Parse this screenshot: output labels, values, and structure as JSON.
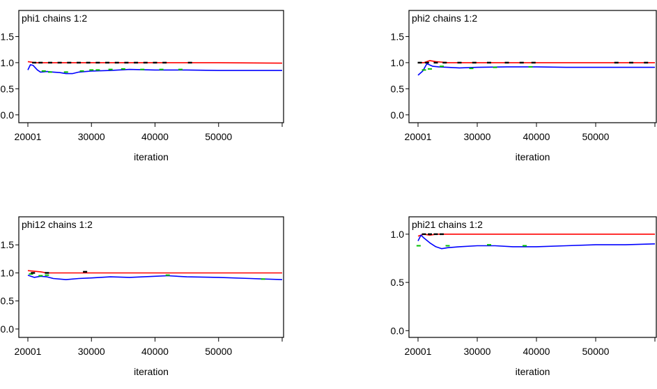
{
  "chart_data": [
    {
      "type": "line",
      "title": "phi1 chains 1:2",
      "xlabel": "iteration",
      "ylabel": "",
      "xlim": [
        20001,
        60000
      ],
      "ylim": [
        -0.15,
        2.0
      ],
      "xticks": [
        20001,
        30000,
        40000,
        50000,
        60000
      ],
      "xtick_labels": [
        "20001",
        "30000",
        "40000",
        "50000",
        ""
      ],
      "yticks": [
        0.0,
        0.5,
        1.0,
        1.5
      ],
      "ytick_labels": [
        "0.0",
        "0.5",
        "1.0",
        "1.5"
      ],
      "grid": false,
      "series": [
        {
          "color": "#ff0000",
          "x": [
            20001,
            20500,
            21000,
            22000,
            25000,
            30000,
            40000,
            50000,
            60000
          ],
          "values": [
            1.02,
            1.01,
            1.0,
            1.0,
            1.0,
            1.0,
            1.0,
            1.0,
            0.99
          ]
        },
        {
          "color": "#0000ff",
          "x": [
            20001,
            20400,
            20800,
            21500,
            22000,
            23000,
            24000,
            25000,
            26000,
            27000,
            28000,
            30000,
            33000,
            36000,
            40000,
            45000,
            50000,
            55000,
            60000
          ],
          "values": [
            0.86,
            0.96,
            0.95,
            0.86,
            0.82,
            0.83,
            0.82,
            0.81,
            0.79,
            0.79,
            0.82,
            0.84,
            0.85,
            0.87,
            0.86,
            0.86,
            0.85,
            0.85,
            0.85
          ]
        },
        {
          "color": "#00c000",
          "x": [
            22500,
            23500,
            26000,
            28500,
            30000,
            31000,
            33000,
            35000,
            38000,
            41000,
            44000
          ],
          "values": [
            0.84,
            0.82,
            0.82,
            0.84,
            0.86,
            0.86,
            0.87,
            0.88,
            0.87,
            0.87,
            0.87
          ]
        },
        {
          "color": "#000000",
          "x": [
            21000,
            22000,
            23500,
            25000,
            26500,
            28000,
            29500,
            31000,
            32500,
            34000,
            35500,
            37000,
            38500,
            40000,
            41500,
            45500
          ],
          "values": [
            1.0,
            1.0,
            1.0,
            1.0,
            1.0,
            1.0,
            1.0,
            1.0,
            1.0,
            1.0,
            1.0,
            1.0,
            1.0,
            1.0,
            1.0,
            1.0
          ]
        }
      ]
    },
    {
      "type": "line",
      "title": "phi2 chains 1:2",
      "xlabel": "iteration",
      "ylabel": "",
      "xlim": [
        20001,
        60000
      ],
      "ylim": [
        -0.15,
        2.0
      ],
      "xticks": [
        20001,
        30000,
        40000,
        50000,
        60000
      ],
      "xtick_labels": [
        "20001",
        "30000",
        "40000",
        "50000",
        ""
      ],
      "yticks": [
        0.0,
        0.5,
        1.0,
        1.5
      ],
      "ytick_labels": [
        "0.0",
        "0.5",
        "1.0",
        "1.5"
      ],
      "grid": false,
      "series": [
        {
          "color": "#ff0000",
          "x": [
            20001,
            21000,
            22000,
            23000,
            25000,
            30000,
            40000,
            50000,
            60000
          ],
          "values": [
            1.0,
            1.0,
            1.04,
            1.02,
            1.0,
            1.0,
            1.0,
            1.0,
            1.0
          ]
        },
        {
          "color": "#0000ff",
          "x": [
            20001,
            20800,
            21500,
            22500,
            23500,
            25000,
            27000,
            30000,
            35000,
            40000,
            45000,
            50000,
            55000,
            60000
          ],
          "values": [
            0.76,
            0.84,
            0.98,
            0.93,
            0.92,
            0.91,
            0.9,
            0.91,
            0.92,
            0.92,
            0.91,
            0.91,
            0.91,
            0.91
          ]
        },
        {
          "color": "#00c000",
          "x": [
            21000,
            22000,
            24000,
            29000,
            33000,
            39000
          ],
          "values": [
            0.86,
            0.88,
            0.93,
            0.89,
            0.91,
            0.92
          ]
        },
        {
          "color": "#000000",
          "x": [
            20300,
            21500,
            23000,
            24500,
            27000,
            29500,
            32000,
            35000,
            37500,
            39500,
            53500,
            56000,
            58500
          ],
          "values": [
            1.0,
            1.0,
            1.0,
            1.0,
            1.0,
            1.0,
            1.0,
            1.0,
            1.0,
            1.0,
            1.0,
            1.0,
            1.0
          ]
        }
      ]
    },
    {
      "type": "line",
      "title": "phi12 chains 1:2",
      "xlabel": "iteration",
      "ylabel": "",
      "xlim": [
        20001,
        60000
      ],
      "ylim": [
        -0.15,
        2.0
      ],
      "xticks": [
        20001,
        30000,
        40000,
        50000,
        60000
      ],
      "xtick_labels": [
        "20001",
        "30000",
        "40000",
        "50000",
        ""
      ],
      "yticks": [
        0.0,
        0.5,
        1.0,
        1.5
      ],
      "ytick_labels": [
        "0.0",
        "0.5",
        "1.0",
        "1.5"
      ],
      "grid": false,
      "series": [
        {
          "color": "#ff0000",
          "x": [
            20001,
            21000,
            22000,
            23000,
            25000,
            30000,
            40000,
            50000,
            60000
          ],
          "values": [
            1.04,
            1.03,
            1.02,
            1.0,
            1.0,
            1.0,
            1.0,
            1.0,
            1.0
          ]
        },
        {
          "color": "#0000ff",
          "x": [
            20001,
            21000,
            22000,
            23000,
            24000,
            26000,
            28000,
            30000,
            33000,
            36000,
            40000,
            42000,
            45000,
            50000,
            55000,
            60000
          ],
          "values": [
            0.96,
            0.92,
            0.94,
            0.93,
            0.9,
            0.88,
            0.9,
            0.91,
            0.93,
            0.92,
            0.94,
            0.95,
            0.93,
            0.92,
            0.9,
            0.88
          ]
        },
        {
          "color": "#00c000",
          "x": [
            20500,
            22000,
            23000,
            42000,
            57000
          ],
          "values": [
            0.98,
            0.95,
            0.96,
            0.96,
            0.89
          ]
        },
        {
          "color": "#000000",
          "x": [
            20800,
            23000,
            29000
          ],
          "values": [
            1.0,
            1.0,
            1.02
          ]
        }
      ]
    },
    {
      "type": "line",
      "title": "phi21 chains 1:2",
      "xlabel": "iteration",
      "ylabel": "",
      "xlim": [
        20001,
        60000
      ],
      "ylim": [
        -0.07,
        1.18
      ],
      "xticks": [
        20001,
        30000,
        40000,
        50000,
        60000
      ],
      "xtick_labels": [
        "20001",
        "30000",
        "40000",
        "50000",
        ""
      ],
      "yticks": [
        0.0,
        0.5,
        1.0
      ],
      "ytick_labels": [
        "0.0",
        "0.5",
        "1.0"
      ],
      "grid": false,
      "series": [
        {
          "color": "#ff0000",
          "x": [
            20001,
            21000,
            22000,
            23000,
            25000,
            30000,
            40000,
            50000,
            60000
          ],
          "values": [
            0.98,
            1.0,
            0.99,
            1.0,
            1.0,
            1.0,
            1.0,
            1.0,
            1.0
          ]
        },
        {
          "color": "#0000ff",
          "x": [
            20001,
            20500,
            21000,
            22000,
            23000,
            24000,
            25000,
            27000,
            30000,
            33000,
            36000,
            40000,
            45000,
            50000,
            55000,
            60000
          ],
          "values": [
            0.93,
            0.99,
            0.96,
            0.91,
            0.87,
            0.85,
            0.86,
            0.87,
            0.88,
            0.88,
            0.87,
            0.87,
            0.88,
            0.89,
            0.89,
            0.9
          ]
        },
        {
          "color": "#00c000",
          "x": [
            20100,
            25000,
            32000,
            38000
          ],
          "values": [
            0.88,
            0.88,
            0.89,
            0.88
          ]
        },
        {
          "color": "#000000",
          "x": [
            21000,
            22000,
            23000,
            24000
          ],
          "values": [
            1.0,
            1.0,
            1.0,
            1.0
          ]
        }
      ]
    }
  ]
}
